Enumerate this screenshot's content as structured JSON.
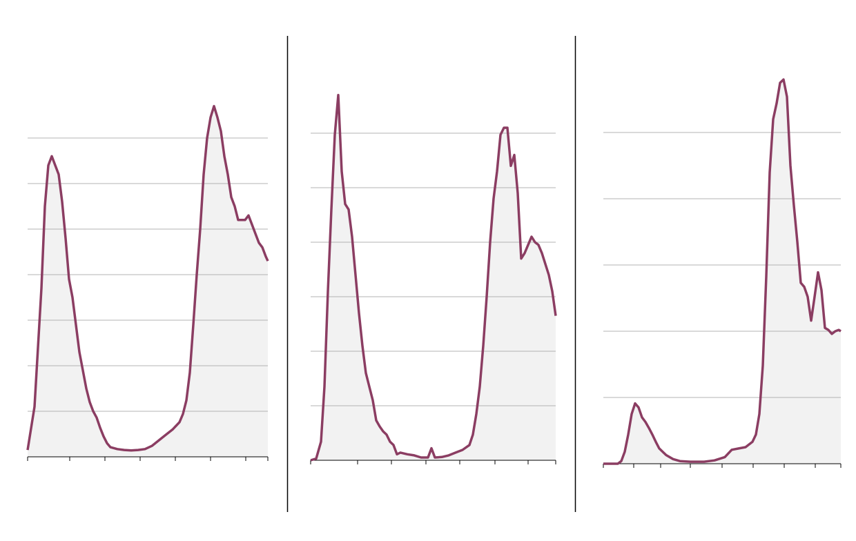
{
  "chart_data": [
    {
      "type": "area",
      "color": "#8b3d62",
      "area_color": "#f2f2f2",
      "grid": true,
      "xlim": [
        0,
        69.6
      ],
      "xticks": [
        0,
        12.2,
        22.4,
        32.6,
        42.8,
        53,
        63.2,
        69.6
      ],
      "ylim": [
        0,
        8
      ],
      "yticks": [
        1,
        2,
        3,
        4,
        5,
        6,
        7
      ],
      "x": [
        0,
        2,
        4,
        5,
        6,
        7,
        8,
        9,
        10,
        11,
        12,
        13,
        14,
        15,
        16,
        17,
        18,
        19,
        20,
        21,
        22,
        23,
        24,
        26,
        28,
        30,
        32,
        34,
        36,
        38,
        40,
        42,
        44,
        45,
        46,
        47,
        48,
        49,
        50,
        51,
        52,
        53,
        54,
        55,
        56,
        57,
        58,
        59,
        60,
        61,
        62,
        63,
        64,
        65,
        66,
        67,
        68,
        69,
        69.6
      ],
      "values": [
        0.15,
        1.1,
        3.7,
        5.5,
        6.4,
        6.6,
        6.4,
        6.2,
        5.6,
        4.8,
        3.9,
        3.5,
        2.9,
        2.3,
        1.9,
        1.5,
        1.2,
        1.0,
        0.86,
        0.64,
        0.45,
        0.3,
        0.21,
        0.17,
        0.15,
        0.14,
        0.15,
        0.17,
        0.24,
        0.36,
        0.48,
        0.6,
        0.76,
        0.94,
        1.24,
        1.85,
        2.9,
        4.0,
        5.0,
        6.2,
        7.0,
        7.45,
        7.7,
        7.45,
        7.15,
        6.6,
        6.2,
        5.7,
        5.5,
        5.2,
        5.2,
        5.2,
        5.3,
        5.1,
        4.9,
        4.7,
        4.6,
        4.4,
        4.3
      ]
    },
    {
      "type": "area",
      "color": "#8b3d62",
      "area_color": "#f2f2f2",
      "grid": true,
      "xlim": [
        0,
        71
      ],
      "xticks": [
        0,
        13.6,
        23.4,
        33.4,
        43.2,
        53.4,
        63,
        71
      ],
      "ylim": [
        0,
        7
      ],
      "yticks": [
        1,
        2,
        3,
        4,
        5,
        6
      ],
      "x": [
        0,
        1.6,
        3,
        4,
        5,
        6,
        7,
        8,
        9,
        10,
        11,
        12,
        13,
        14,
        15,
        16,
        17,
        18,
        19,
        20,
        21,
        22,
        23,
        24,
        25,
        26,
        28,
        30,
        32,
        34,
        35,
        36,
        38,
        40,
        42,
        44,
        46,
        47,
        48,
        49,
        50,
        51,
        52,
        53,
        54,
        55,
        56,
        57,
        58,
        59,
        60,
        61,
        62,
        63,
        64,
        65,
        66,
        67,
        68,
        69,
        70,
        71
      ],
      "values": [
        0,
        0.03,
        0.34,
        1.35,
        3.1,
        4.6,
        5.97,
        6.7,
        5.3,
        4.7,
        4.6,
        4.1,
        3.4,
        2.7,
        2.1,
        1.6,
        1.35,
        1.1,
        0.73,
        0.62,
        0.53,
        0.47,
        0.34,
        0.28,
        0.11,
        0.14,
        0.11,
        0.09,
        0.05,
        0.05,
        0.22,
        0.05,
        0.06,
        0.09,
        0.14,
        0.19,
        0.28,
        0.47,
        0.85,
        1.35,
        2.1,
        3.0,
        4.0,
        4.8,
        5.3,
        5.97,
        6.1,
        6.1,
        5.4,
        5.6,
        4.9,
        3.7,
        3.8,
        3.95,
        4.1,
        4.0,
        3.95,
        3.8,
        3.6,
        3.4,
        3.1,
        2.65
      ]
    },
    {
      "type": "area",
      "color": "#8b3d62",
      "area_color": "#f2f2f2",
      "grid": true,
      "xlim": [
        0,
        68.8
      ],
      "xticks": [
        0,
        8.8,
        16.6,
        25.2,
        34.4,
        43.4,
        52.4,
        61.4,
        68.8
      ],
      "ylim": [
        0,
        6
      ],
      "yticks": [
        1,
        2,
        3,
        4,
        5
      ],
      "x": [
        0,
        4.2,
        5.2,
        6.2,
        7.2,
        8.2,
        9.2,
        10.2,
        11.2,
        12.2,
        13.2,
        14.2,
        15.2,
        16.2,
        17.2,
        18.2,
        20.2,
        22.2,
        25.2,
        29.2,
        32.2,
        35.2,
        37.2,
        39.2,
        41.2,
        43.2,
        44.2,
        45.2,
        46.2,
        47.2,
        48.2,
        49.2,
        50.2,
        51.2,
        52.2,
        53.2,
        54.2,
        55.2,
        56.2,
        57.2,
        58.2,
        59.2,
        60.2,
        61.2,
        62.2,
        63.2,
        64.2,
        65.2,
        66.2,
        67.2,
        68.2,
        68.8
      ],
      "values": [
        0,
        0,
        0.04,
        0.18,
        0.44,
        0.75,
        0.91,
        0.85,
        0.7,
        0.63,
        0.54,
        0.44,
        0.33,
        0.23,
        0.18,
        0.13,
        0.07,
        0.04,
        0.03,
        0.03,
        0.05,
        0.1,
        0.21,
        0.23,
        0.25,
        0.33,
        0.44,
        0.75,
        1.48,
        2.83,
        4.4,
        5.2,
        5.44,
        5.75,
        5.8,
        5.54,
        4.5,
        3.9,
        3.35,
        2.73,
        2.67,
        2.52,
        2.16,
        2.52,
        2.89,
        2.62,
        2.05,
        2.02,
        1.96,
        2.0,
        2.02,
        2.0
      ]
    }
  ]
}
